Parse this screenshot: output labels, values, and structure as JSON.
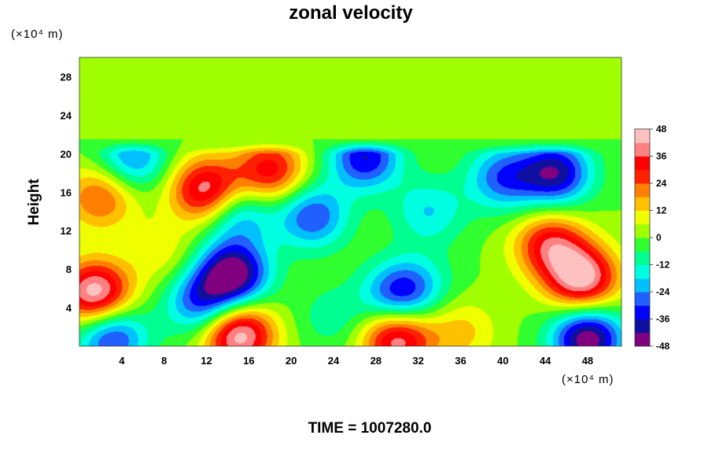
{
  "chart_data": {
    "type": "heatmap",
    "title": "zonal velocity",
    "ylabel": "Height",
    "y_unit": "(×10⁴ m)",
    "x_unit": "(×10⁴ m)",
    "xlim": [
      0,
      51.2
    ],
    "ylim": [
      0,
      30
    ],
    "x_ticks": [
      "4",
      "8",
      "12",
      "16",
      "20",
      "24",
      "28",
      "32",
      "36",
      "40",
      "44",
      "48"
    ],
    "y_ticks": [
      "4",
      "8",
      "12",
      "16",
      "20",
      "24",
      "28"
    ],
    "colorbar": {
      "range": [
        -48,
        48
      ],
      "ticks": [
        "48",
        "36",
        "24",
        "12",
        "0",
        "-12",
        "-24",
        "-36",
        "-48"
      ],
      "colors": [
        "#800080",
        "#1010a0",
        "#0000ff",
        "#2060ff",
        "#00c0ff",
        "#00ffe0",
        "#00ff90",
        "#30ff30",
        "#a0ff00",
        "#f0ff00",
        "#ffc000",
        "#ff8000",
        "#ff2000",
        "#ff0000",
        "#ff8080",
        "#ffc0c0"
      ]
    },
    "features": [
      {
        "x": 14.5,
        "y": 7.5,
        "value": -48
      },
      {
        "x": 11.5,
        "y": 4.5,
        "value": -30
      },
      {
        "x": 15.0,
        "y": 1.2,
        "value": 48
      },
      {
        "x": 30.0,
        "y": 0.8,
        "value": 42
      },
      {
        "x": 1.5,
        "y": 5.5,
        "value": 48
      },
      {
        "x": 47.5,
        "y": 7.0,
        "value": 46
      },
      {
        "x": 44.5,
        "y": 10.5,
        "value": 34
      },
      {
        "x": 48.0,
        "y": 0.8,
        "value": -48
      },
      {
        "x": 30.0,
        "y": 5.2,
        "value": -30
      },
      {
        "x": 32.0,
        "y": 6.5,
        "value": -12
      },
      {
        "x": 45.0,
        "y": 18.0,
        "value": -40
      },
      {
        "x": 40.0,
        "y": 17.5,
        "value": -28
      },
      {
        "x": 27.0,
        "y": 19.6,
        "value": -36
      },
      {
        "x": 18.0,
        "y": 18.2,
        "value": 34
      },
      {
        "x": 12.0,
        "y": 16.2,
        "value": 42
      },
      {
        "x": 22.0,
        "y": 13.5,
        "value": -30
      },
      {
        "x": 15.0,
        "y": 13.8,
        "value": -24
      },
      {
        "x": 33.0,
        "y": 14.0,
        "value": -18
      },
      {
        "x": 2.0,
        "y": 15.5,
        "value": 26
      },
      {
        "x": 5.0,
        "y": 19.5,
        "value": -26
      },
      {
        "x": 3.0,
        "y": 1.0,
        "value": -34
      },
      {
        "x": 36.0,
        "y": 1.5,
        "value": 14
      },
      {
        "x": 24.0,
        "y": 3.0,
        "value": -10
      },
      {
        "x": 8.0,
        "y": 9.5,
        "value": 10
      }
    ]
  },
  "footer": {
    "time_label": "TIME = 1007280.0"
  }
}
